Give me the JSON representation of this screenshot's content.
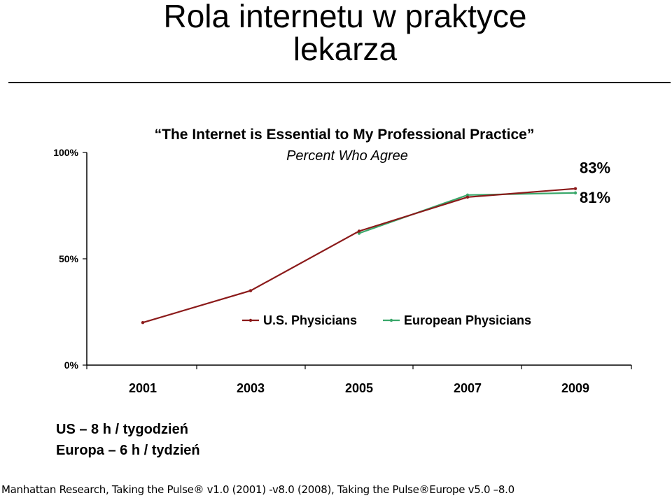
{
  "slide": {
    "title_line1": "Rola internetu w praktyce",
    "title_line2": "lekarza",
    "bullets": [
      "US – 8 h / tygodzień",
      "Europa – 6 h / tydzień"
    ],
    "source": "Manhattan Research, Taking the Pulse® v1.0 (2001) -v8.0 (2008), Taking the Pulse®Europe v5.0 –8.0"
  },
  "chart_data": {
    "type": "line",
    "title": "“The Internet is Essential to My Professional Practice”",
    "subtitle": "Percent Who Agree",
    "x": [
      "2001",
      "2003",
      "2005",
      "2007",
      "2009"
    ],
    "ylim": [
      0,
      100
    ],
    "yticks": [
      "0%",
      "50%",
      "100%"
    ],
    "grid": false,
    "legend_position": "center",
    "series": [
      {
        "name": "U.S. Physicians",
        "color": "#8b1a1a",
        "values": [
          20,
          35,
          63,
          79,
          83
        ],
        "end_label": "83%"
      },
      {
        "name": "European Physicians",
        "color": "#3aa86b",
        "values": [
          null,
          null,
          62,
          80,
          81
        ],
        "end_label": "81%"
      }
    ]
  }
}
